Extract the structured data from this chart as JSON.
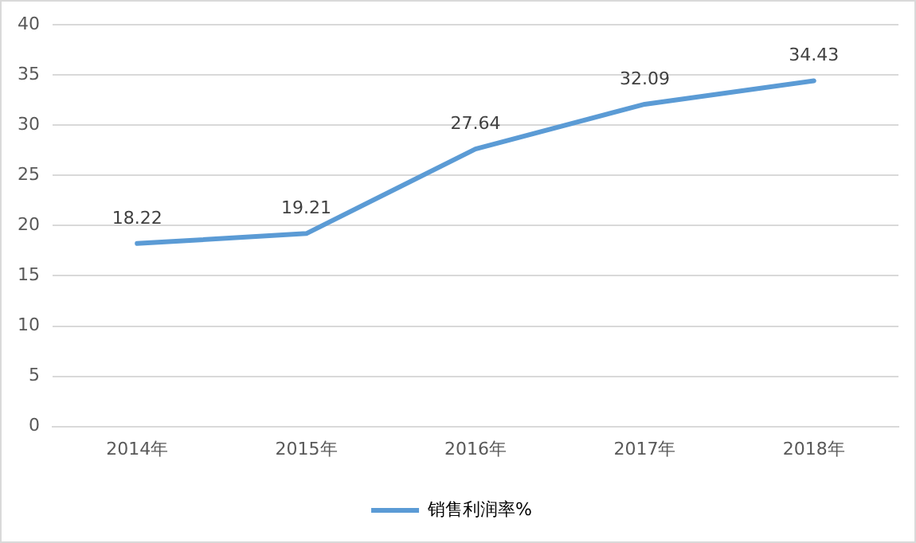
{
  "chart_data": {
    "type": "line",
    "categories": [
      "2014年",
      "2015年",
      "2016年",
      "2017年",
      "2018年"
    ],
    "series": [
      {
        "name": "销售利润率%",
        "color": "#5b9bd5",
        "values": [
          18.22,
          19.21,
          27.64,
          32.09,
          34.43
        ]
      }
    ],
    "ylim": [
      0,
      40
    ],
    "yticks": [
      0,
      5,
      10,
      15,
      20,
      25,
      30,
      35,
      40
    ],
    "grid": "y",
    "legend": "bottom",
    "data_labels": true,
    "marker": "none",
    "line_style": "solid"
  }
}
